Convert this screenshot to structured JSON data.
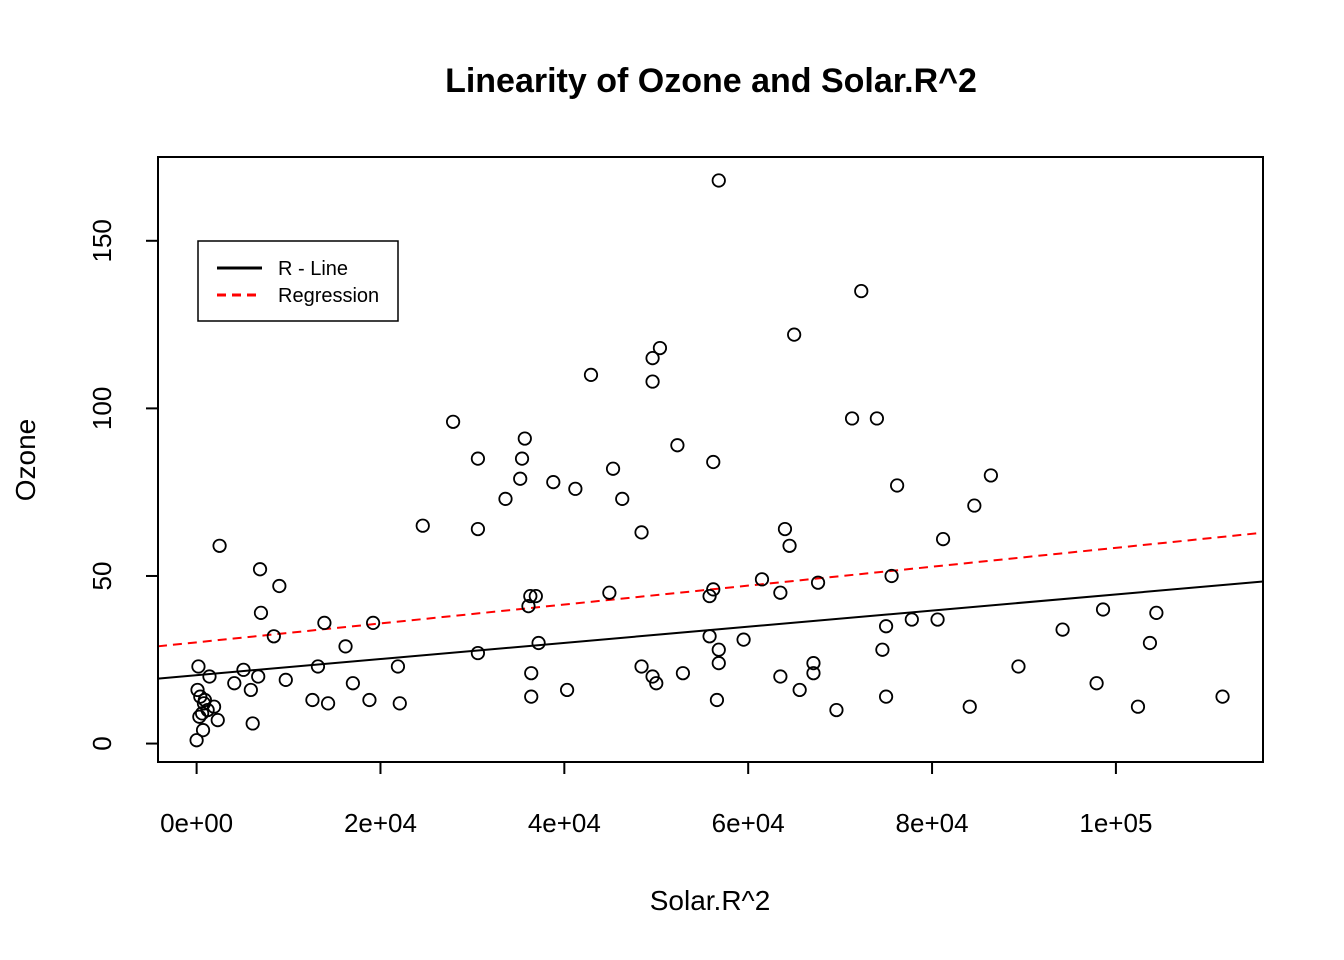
{
  "chart_data": {
    "type": "scatter",
    "title": "Linearity of Ozone and Solar.R^2",
    "xlabel": "Solar.R^2",
    "ylabel": "Ozone",
    "xlim": [
      -4200,
      116000
    ],
    "ylim": [
      -5.5,
      175
    ],
    "x_ticks": [
      {
        "value": 0,
        "label": "0e+00"
      },
      {
        "value": 20000,
        "label": "2e+04"
      },
      {
        "value": 40000,
        "label": "4e+04"
      },
      {
        "value": 60000,
        "label": "6e+04"
      },
      {
        "value": 80000,
        "label": "8e+04"
      },
      {
        "value": 100000,
        "label": "1e+05"
      }
    ],
    "y_ticks": [
      {
        "value": 0,
        "label": "0"
      },
      {
        "value": 50,
        "label": "50"
      },
      {
        "value": 100,
        "label": "100"
      },
      {
        "value": 150,
        "label": "150"
      }
    ],
    "legend": {
      "position": "top-left",
      "entries": [
        {
          "label": "R - Line",
          "color": "#000000",
          "style": "solid"
        },
        {
          "label": "Regression",
          "color": "#ff0000",
          "style": "dashed"
        }
      ]
    },
    "lines": [
      {
        "name": "R - Line",
        "color": "#000000",
        "style": "solid",
        "intercept": 20.4,
        "slope": 0.000241
      },
      {
        "name": "Regression",
        "color": "#ff0000",
        "style": "dashed",
        "intercept": 30.2,
        "slope": 0.000282
      }
    ],
    "points": [
      [
        2500,
        59
      ],
      [
        6900,
        52
      ],
      [
        9000,
        47
      ],
      [
        7000,
        39
      ],
      [
        8400,
        32
      ],
      [
        13900,
        36
      ],
      [
        16200,
        29
      ],
      [
        19200,
        36
      ],
      [
        24600,
        65
      ],
      [
        27900,
        96
      ],
      [
        30600,
        85
      ],
      [
        30600,
        64
      ],
      [
        30600,
        27
      ],
      [
        33600,
        73
      ],
      [
        35200,
        79
      ],
      [
        35400,
        85
      ],
      [
        35700,
        91
      ],
      [
        36100,
        41
      ],
      [
        36300,
        44
      ],
      [
        36900,
        44
      ],
      [
        37200,
        30
      ],
      [
        36400,
        21
      ],
      [
        36400,
        14
      ],
      [
        38800,
        78
      ],
      [
        41200,
        76
      ],
      [
        40300,
        16
      ],
      [
        42900,
        110
      ],
      [
        44900,
        45
      ],
      [
        45300,
        82
      ],
      [
        46300,
        73
      ],
      [
        48400,
        63
      ],
      [
        48400,
        23
      ],
      [
        49600,
        115
      ],
      [
        49600,
        108
      ],
      [
        50400,
        118
      ],
      [
        49600,
        20
      ],
      [
        50000,
        18
      ],
      [
        52300,
        89
      ],
      [
        52900,
        21
      ],
      [
        55800,
        44
      ],
      [
        56200,
        46
      ],
      [
        56200,
        84
      ],
      [
        55800,
        32
      ],
      [
        56800,
        28
      ],
      [
        56800,
        24
      ],
      [
        56600,
        13
      ],
      [
        56800,
        168
      ],
      [
        59500,
        31
      ],
      [
        61500,
        49
      ],
      [
        63500,
        45
      ],
      [
        63500,
        20
      ],
      [
        64000,
        64
      ],
      [
        64500,
        59
      ],
      [
        65000,
        122
      ],
      [
        65600,
        16
      ],
      [
        67100,
        24
      ],
      [
        67100,
        21
      ],
      [
        67600,
        48
      ],
      [
        69600,
        10
      ],
      [
        71300,
        97
      ],
      [
        72300,
        135
      ],
      [
        74000,
        97
      ],
      [
        74600,
        28
      ],
      [
        75000,
        35
      ],
      [
        75000,
        14
      ],
      [
        75600,
        50
      ],
      [
        76200,
        77
      ],
      [
        77800,
        37
      ],
      [
        80600,
        37
      ],
      [
        81200,
        61
      ],
      [
        84100,
        11
      ],
      [
        84600,
        71
      ],
      [
        86400,
        80
      ],
      [
        89400,
        23
      ],
      [
        94200,
        34
      ],
      [
        97900,
        18
      ],
      [
        98600,
        40
      ],
      [
        102400,
        11
      ],
      [
        103700,
        30
      ],
      [
        104400,
        39
      ],
      [
        111600,
        14
      ],
      [
        0,
        1
      ],
      [
        100,
        16
      ],
      [
        200,
        23
      ],
      [
        300,
        8
      ],
      [
        400,
        14
      ],
      [
        600,
        9
      ],
      [
        700,
        4
      ],
      [
        800,
        12
      ],
      [
        900,
        13
      ],
      [
        1200,
        10
      ],
      [
        1400,
        20
      ],
      [
        1900,
        11
      ],
      [
        2300,
        7
      ],
      [
        4100,
        18
      ],
      [
        5100,
        22
      ],
      [
        5900,
        16
      ],
      [
        6100,
        6
      ],
      [
        6700,
        20
      ],
      [
        9700,
        19
      ],
      [
        12600,
        13
      ],
      [
        13200,
        23
      ],
      [
        14300,
        12
      ],
      [
        17000,
        18
      ],
      [
        18800,
        13
      ],
      [
        21900,
        23
      ],
      [
        22100,
        12
      ]
    ]
  }
}
